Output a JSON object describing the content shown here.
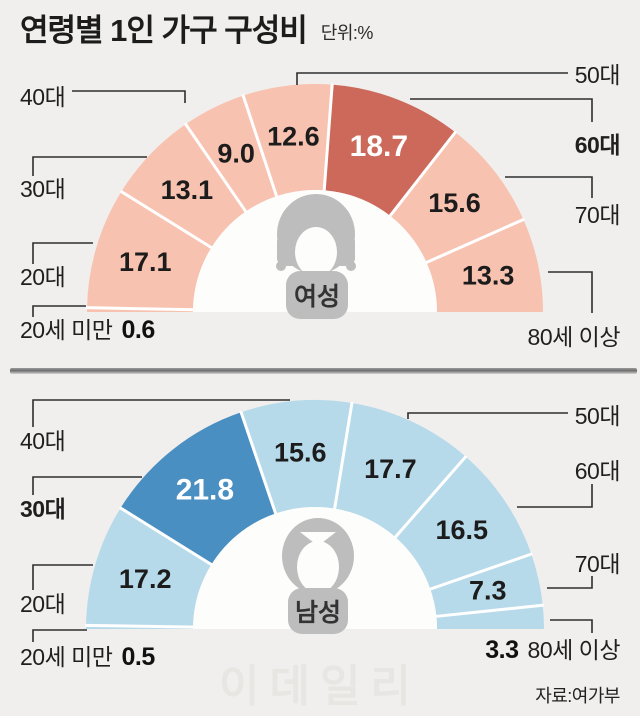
{
  "title": {
    "text": "연령별 1인 가구 구성비",
    "unit": "단위:%"
  },
  "source": "자료:여가부",
  "watermark": "이데일리",
  "colors": {
    "female_base": "#f8c2b0",
    "female_highlight": "#cc695a",
    "male_base": "#b7daeb",
    "male_highlight": "#4a8fc1",
    "icon_gray": "#bdbdbd",
    "inner_circle": "#fdfdfc",
    "callout_line": "#2e2e2e",
    "value_dark": "#1c1c1c",
    "value_light": "#ffffff",
    "background": "#f0efed"
  },
  "chart_data": [
    {
      "type": "pie",
      "variant": "half-donut",
      "group_label": "여성",
      "icon": "female-icon",
      "unit": "%",
      "legend_position": "callouts-outside",
      "highlighted_category": "60대",
      "categories": [
        "20세 미만",
        "20대",
        "30대",
        "40대",
        "50대",
        "60대",
        "70대",
        "80세 이상"
      ],
      "values": [
        0.6,
        17.1,
        13.1,
        9.0,
        12.6,
        18.7,
        15.6,
        13.3
      ],
      "segments": [
        {
          "age": "20세 미만",
          "value": 0.6,
          "display": "0.6",
          "highlight": false,
          "label_inside": false
        },
        {
          "age": "20대",
          "value": 17.1,
          "display": "17.1",
          "highlight": false,
          "label_inside": true
        },
        {
          "age": "30대",
          "value": 13.1,
          "display": "13.1",
          "highlight": false,
          "label_inside": true
        },
        {
          "age": "40대",
          "value": 9.0,
          "display": "9.0",
          "highlight": false,
          "label_inside": true
        },
        {
          "age": "50대",
          "value": 12.6,
          "display": "12.6",
          "highlight": false,
          "label_inside": true
        },
        {
          "age": "60대",
          "value": 18.7,
          "display": "18.7",
          "highlight": true,
          "label_inside": true
        },
        {
          "age": "70대",
          "value": 15.6,
          "display": "15.6",
          "highlight": false,
          "label_inside": true
        },
        {
          "age": "80세 이상",
          "value": 13.3,
          "display": "13.3",
          "highlight": false,
          "label_inside": true
        }
      ]
    },
    {
      "type": "pie",
      "variant": "half-donut",
      "group_label": "남성",
      "icon": "male-icon",
      "unit": "%",
      "legend_position": "callouts-outside",
      "highlighted_category": "30대",
      "categories": [
        "20세 미만",
        "20대",
        "30대",
        "40대",
        "50대",
        "60대",
        "70대",
        "80세 이상"
      ],
      "values": [
        0.5,
        17.2,
        21.8,
        15.6,
        17.7,
        16.5,
        7.3,
        3.3
      ],
      "segments": [
        {
          "age": "20세 미만",
          "value": 0.5,
          "display": "0.5",
          "highlight": false,
          "label_inside": false
        },
        {
          "age": "20대",
          "value": 17.2,
          "display": "17.2",
          "highlight": false,
          "label_inside": true
        },
        {
          "age": "30대",
          "value": 21.8,
          "display": "21.8",
          "highlight": true,
          "label_inside": true
        },
        {
          "age": "40대",
          "value": 15.6,
          "display": "15.6",
          "highlight": false,
          "label_inside": true
        },
        {
          "age": "50대",
          "value": 17.7,
          "display": "17.7",
          "highlight": false,
          "label_inside": true
        },
        {
          "age": "60대",
          "value": 16.5,
          "display": "16.5",
          "highlight": false,
          "label_inside": true
        },
        {
          "age": "70대",
          "value": 7.3,
          "display": "7.3",
          "highlight": false,
          "label_inside": true
        },
        {
          "age": "80세 이상",
          "value": 3.3,
          "display": "3.3",
          "highlight": false,
          "label_inside": false
        }
      ]
    }
  ]
}
